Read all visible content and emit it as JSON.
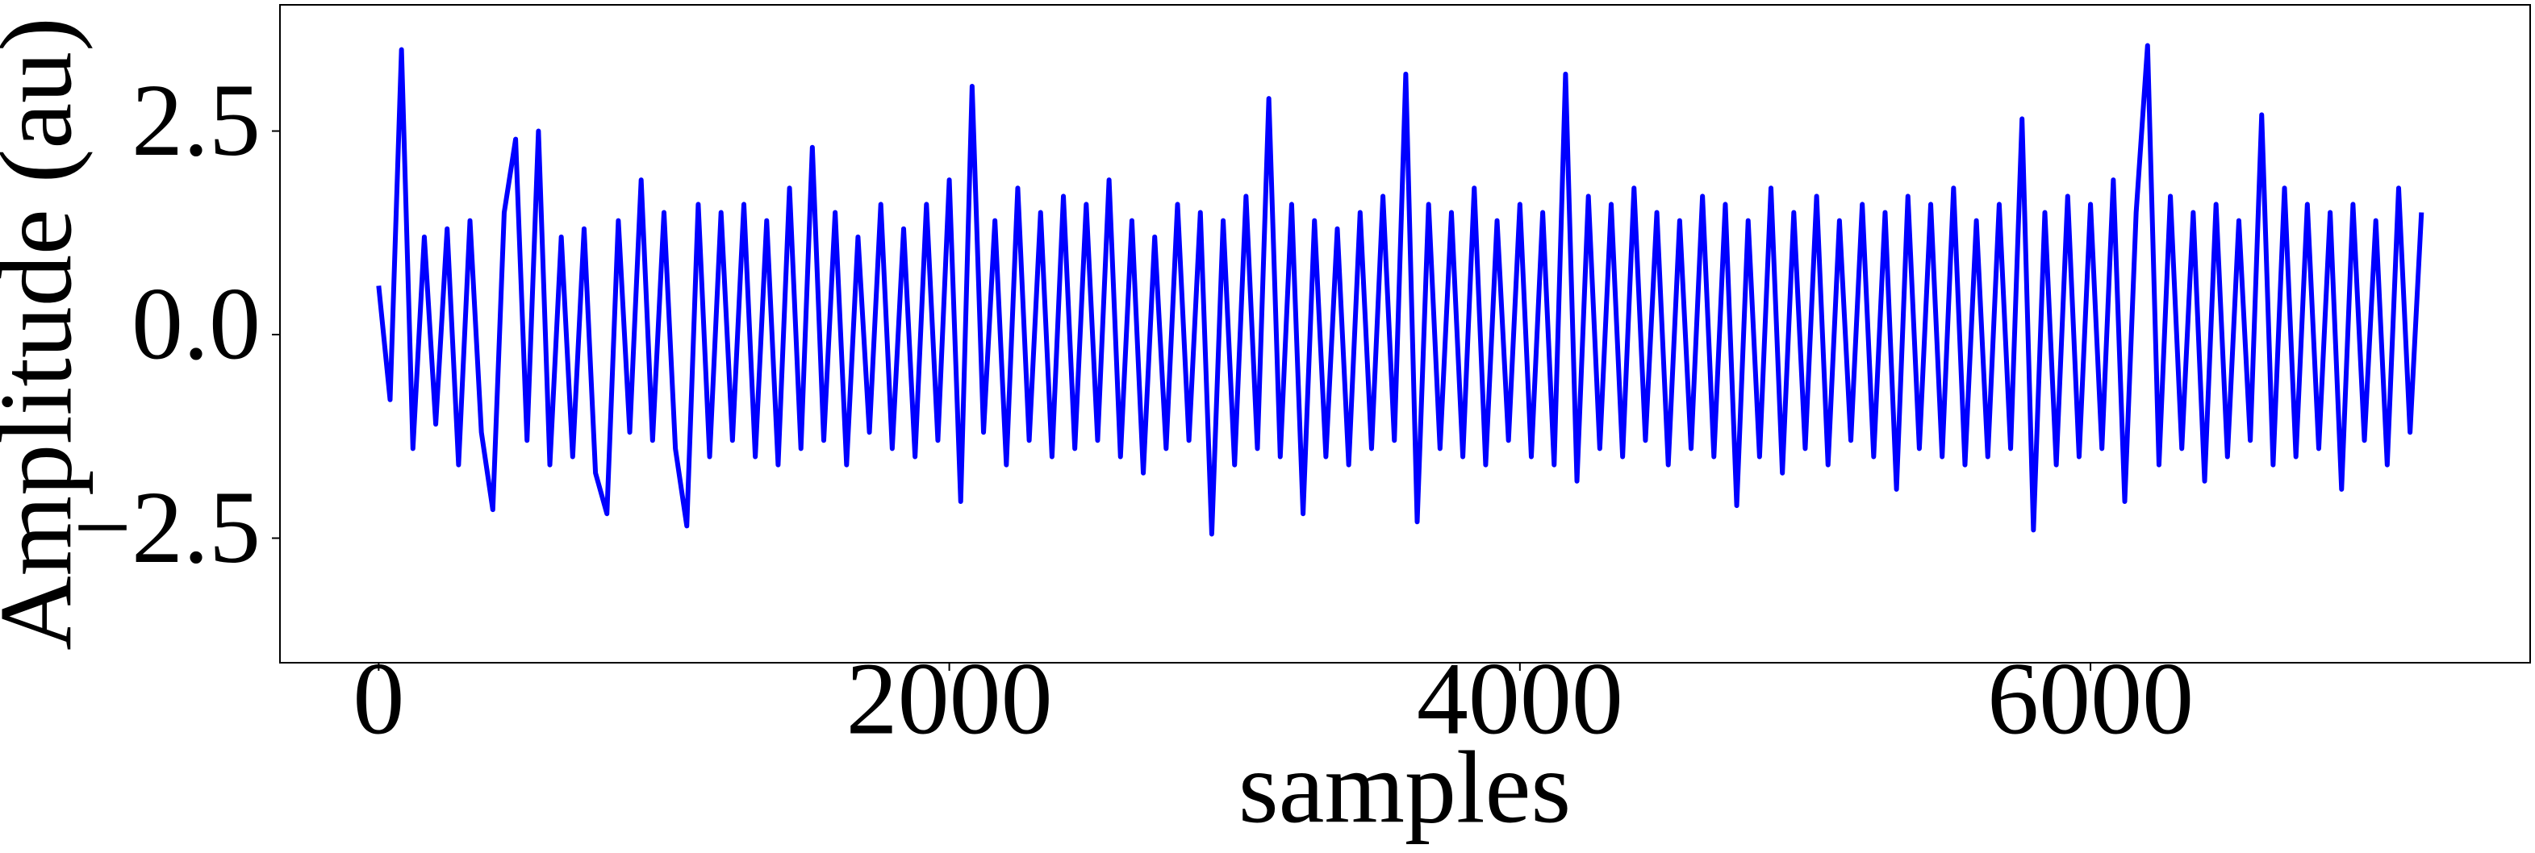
{
  "chart_data": {
    "type": "line",
    "xlabel": "samples",
    "ylabel": "Amplitude (au)",
    "xlim": [
      -346,
      7541
    ],
    "ylim": [
      -4.03,
      4.05
    ],
    "xticks": [
      0,
      2000,
      4000,
      6000
    ],
    "yticks": [
      {
        "value": -2.5,
        "label": "−2.5"
      },
      {
        "value": 0,
        "label": "0.0"
      },
      {
        "value": 2.5,
        "label": "2.5"
      }
    ],
    "grid": false,
    "series": [
      {
        "color": "#0000ff",
        "x": [
          0,
          40,
          80,
          120,
          160,
          200,
          240,
          280,
          320,
          360,
          400,
          440,
          480,
          520,
          560,
          600,
          640,
          680,
          720,
          760,
          800,
          840,
          880,
          920,
          960,
          1000,
          1040,
          1080,
          1120,
          1160,
          1200,
          1240,
          1280,
          1320,
          1360,
          1400,
          1440,
          1480,
          1520,
          1560,
          1600,
          1640,
          1680,
          1720,
          1760,
          1800,
          1840,
          1880,
          1920,
          1960,
          2000,
          2040,
          2080,
          2120,
          2160,
          2200,
          2240,
          2280,
          2320,
          2360,
          2400,
          2440,
          2480,
          2520,
          2560,
          2600,
          2640,
          2680,
          2720,
          2760,
          2800,
          2840,
          2880,
          2920,
          2960,
          3000,
          3040,
          3080,
          3120,
          3160,
          3200,
          3240,
          3280,
          3320,
          3360,
          3400,
          3440,
          3480,
          3520,
          3560,
          3600,
          3640,
          3680,
          3720,
          3760,
          3800,
          3840,
          3880,
          3920,
          3960,
          4000,
          4040,
          4080,
          4120,
          4160,
          4200,
          4240,
          4280,
          4320,
          4360,
          4400,
          4440,
          4480,
          4520,
          4560,
          4600,
          4640,
          4680,
          4720,
          4760,
          4800,
          4840,
          4880,
          4920,
          4960,
          5000,
          5040,
          5080,
          5120,
          5160,
          5200,
          5240,
          5280,
          5320,
          5360,
          5400,
          5440,
          5480,
          5520,
          5560,
          5600,
          5640,
          5680,
          5720,
          5760,
          5800,
          5840,
          5880,
          5920,
          5960,
          6000,
          6040,
          6080,
          6120,
          6160,
          6200,
          6240,
          6280,
          6320,
          6360,
          6400,
          6440,
          6480,
          6520,
          6560,
          6600,
          6640,
          6680,
          6720,
          6760,
          6800,
          6840,
          6880,
          6920,
          6960,
          7000,
          7040,
          7080,
          7120,
          7160
        ],
        "values": [
          0.6,
          -0.8,
          3.5,
          -1.4,
          1.2,
          -1.1,
          1.3,
          -1.6,
          1.4,
          -1.2,
          -2.15,
          1.5,
          2.4,
          -1.3,
          2.5,
          -1.6,
          1.2,
          -1.5,
          1.3,
          -1.7,
          -2.2,
          1.4,
          -1.2,
          1.9,
          -1.3,
          1.5,
          -1.4,
          -2.35,
          1.6,
          -1.5,
          1.5,
          -1.3,
          1.6,
          -1.5,
          1.4,
          -1.6,
          1.8,
          -1.4,
          2.3,
          -1.3,
          1.5,
          -1.6,
          1.2,
          -1.2,
          1.6,
          -1.4,
          1.3,
          -1.5,
          1.6,
          -1.3,
          1.9,
          -2.05,
          3.05,
          -1.2,
          1.4,
          -1.6,
          1.8,
          -1.3,
          1.5,
          -1.5,
          1.7,
          -1.4,
          1.6,
          -1.3,
          1.9,
          -1.5,
          1.4,
          -1.7,
          1.2,
          -1.4,
          1.6,
          -1.3,
          1.5,
          -2.45,
          1.4,
          -1.6,
          1.7,
          -1.4,
          2.9,
          -1.5,
          1.6,
          -2.2,
          1.4,
          -1.5,
          1.3,
          -1.6,
          1.5,
          -1.4,
          1.7,
          -1.3,
          3.2,
          -2.3,
          1.6,
          -1.4,
          1.5,
          -1.5,
          1.8,
          -1.6,
          1.4,
          -1.3,
          1.6,
          -1.5,
          1.5,
          -1.6,
          3.2,
          -1.8,
          1.7,
          -1.4,
          1.6,
          -1.5,
          1.8,
          -1.3,
          1.5,
          -1.6,
          1.4,
          -1.4,
          1.7,
          -1.5,
          1.6,
          -2.1,
          1.4,
          -1.5,
          1.8,
          -1.7,
          1.5,
          -1.4,
          1.7,
          -1.6,
          1.4,
          -1.3,
          1.6,
          -1.5,
          1.5,
          -1.9,
          1.7,
          -1.4,
          1.6,
          -1.5,
          1.8,
          -1.6,
          1.4,
          -1.5,
          1.6,
          -1.4,
          2.65,
          -2.4,
          1.5,
          -1.6,
          1.7,
          -1.5,
          1.6,
          -1.4,
          1.9,
          -2.05,
          1.5,
          3.55,
          -1.6,
          1.7,
          -1.4,
          1.5,
          -1.8,
          1.6,
          -1.5,
          1.4,
          -1.3,
          2.7,
          -1.6,
          1.8,
          -1.5,
          1.6,
          -1.4,
          1.5,
          -1.9,
          1.6,
          -1.3,
          1.4,
          -1.6,
          1.8,
          -1.2,
          1.5
        ]
      }
    ]
  }
}
